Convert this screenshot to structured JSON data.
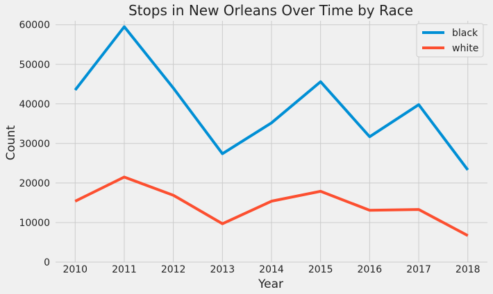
{
  "chart_data": {
    "type": "line",
    "title": "Stops in New Orleans Over Time by Race",
    "xlabel": "Year",
    "ylabel": "Count",
    "x": [
      2010,
      2011,
      2012,
      2013,
      2014,
      2015,
      2016,
      2017,
      2018
    ],
    "series": [
      {
        "name": "black",
        "color": "#008fd5",
        "values": [
          43500,
          59500,
          44000,
          27400,
          35200,
          45600,
          31700,
          39800,
          23300
        ]
      },
      {
        "name": "white",
        "color": "#fc4f30",
        "values": [
          15400,
          21500,
          16900,
          9700,
          15400,
          17900,
          13100,
          13300,
          6700
        ]
      }
    ],
    "yticks": [
      0,
      10000,
      20000,
      30000,
      40000,
      50000,
      60000
    ],
    "ylim": [
      0,
      61000
    ],
    "xlim": [
      2009.6,
      2018.4
    ],
    "grid": true,
    "legend_position": "top-right",
    "style": {
      "background": "#f0f0f0",
      "grid_color": "#cbcbcb"
    }
  }
}
